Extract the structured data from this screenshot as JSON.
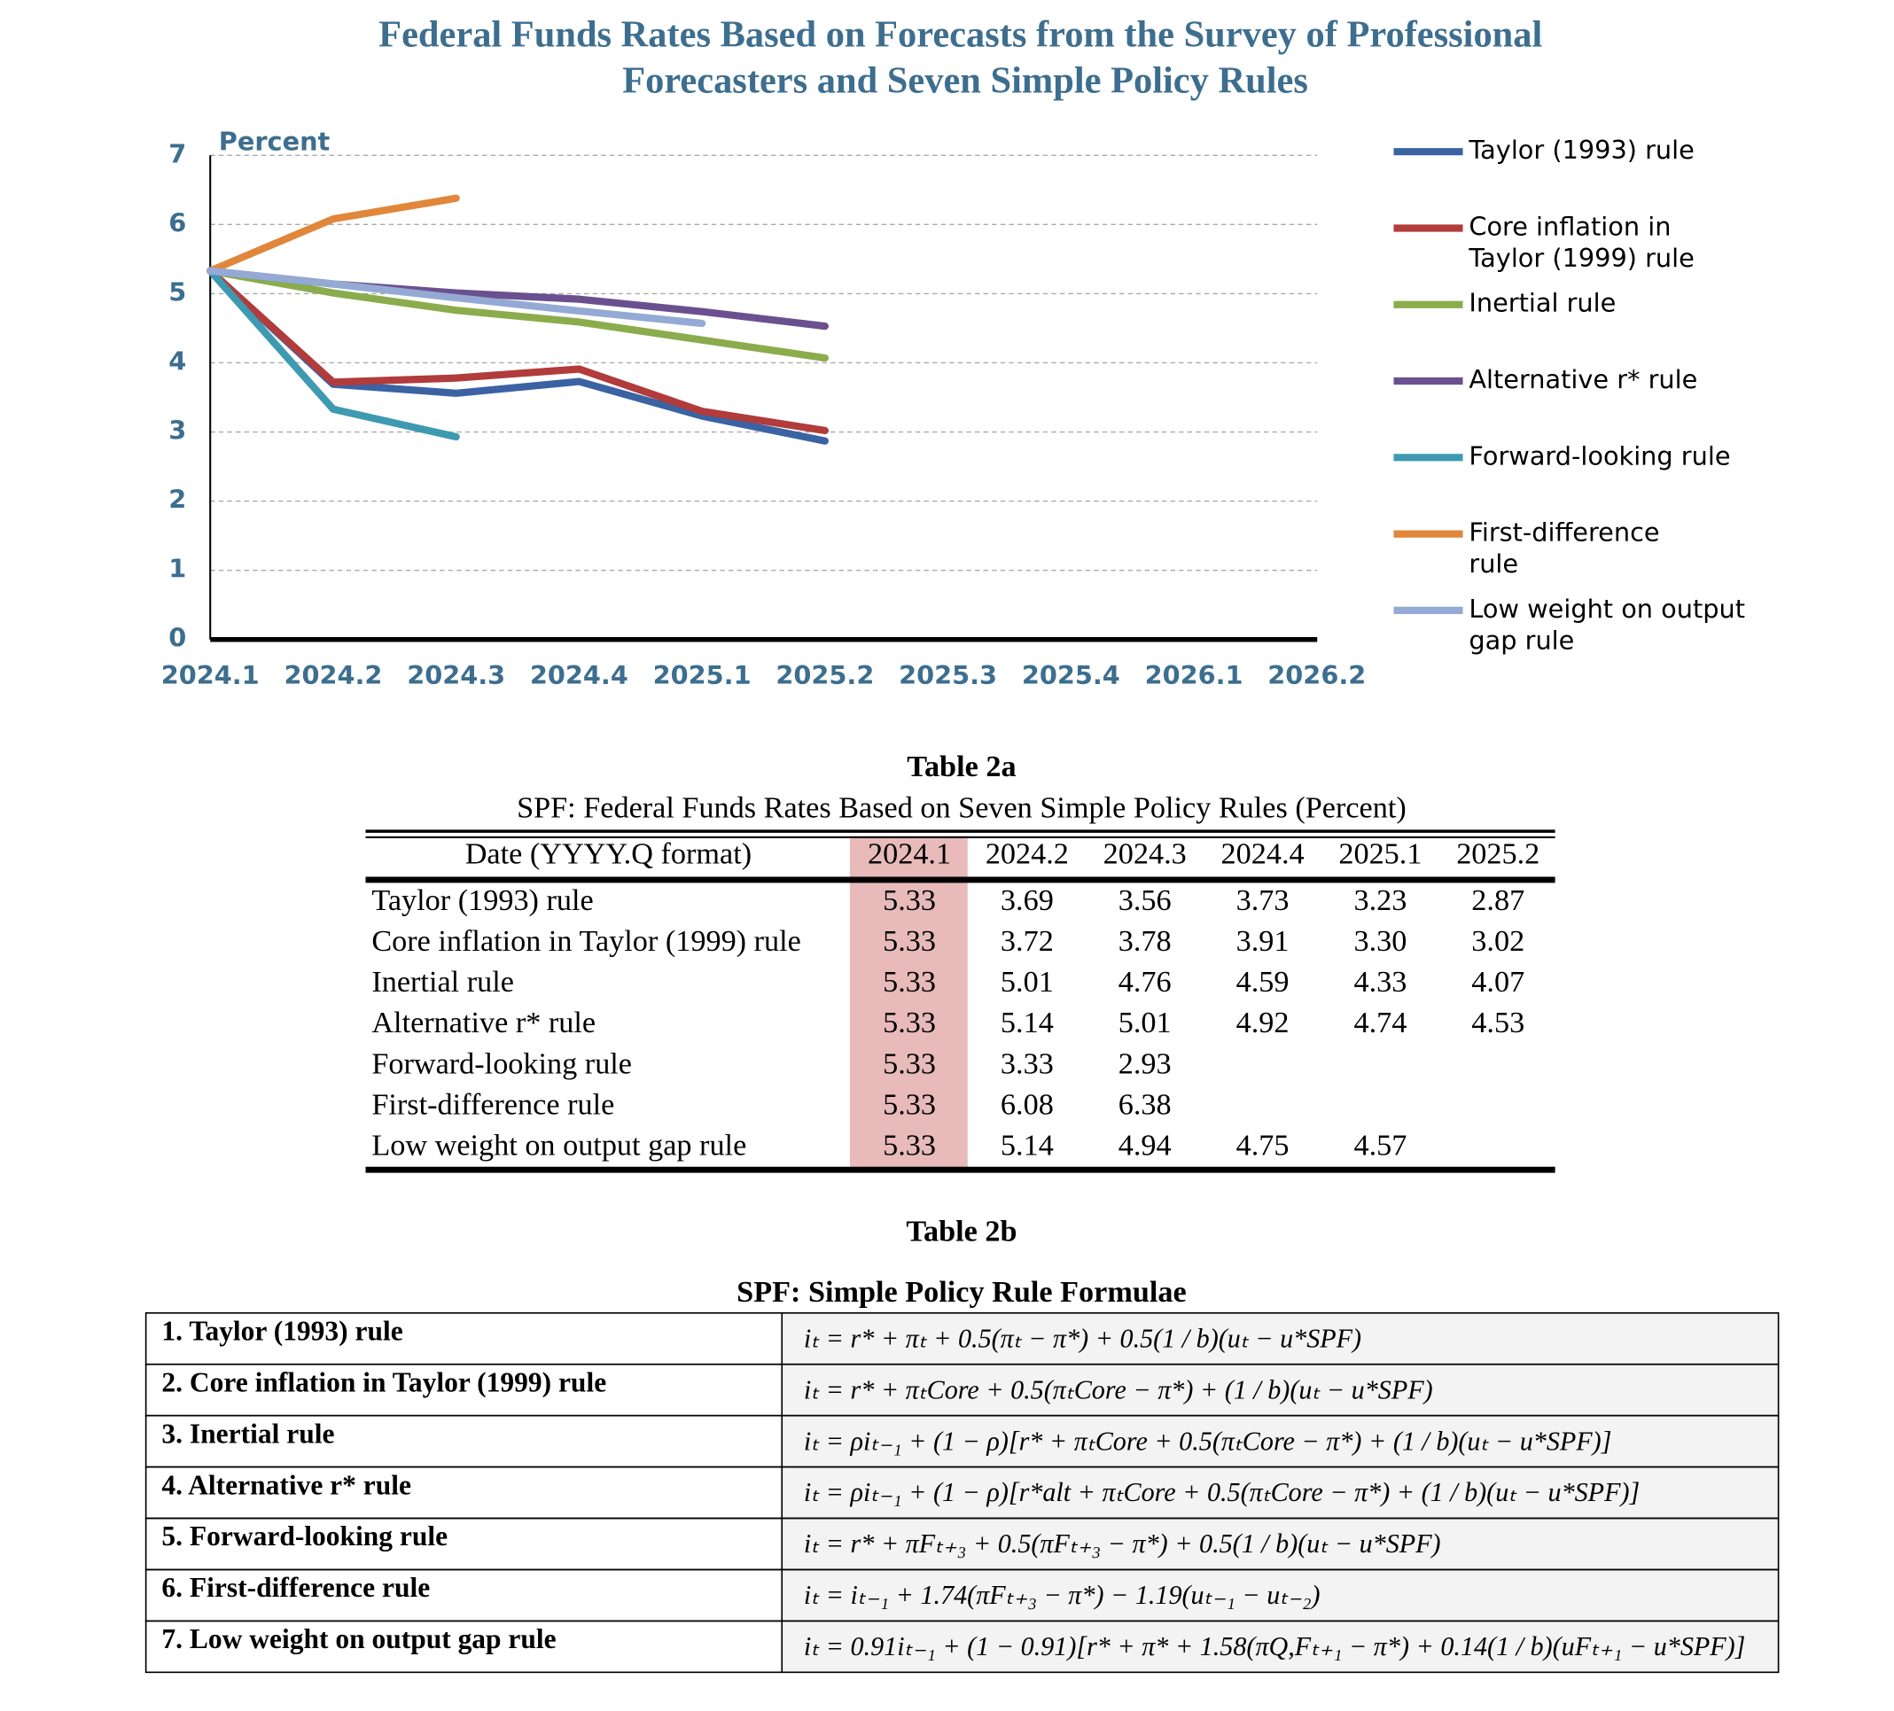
{
  "chart_data": {
    "type": "line",
    "title": "Federal Funds Rates Based on Forecasts from the Survey of Professional Forecasters and Seven Simple Policy Rules",
    "y_label": "Percent",
    "categories": [
      "2024.1",
      "2024.2",
      "2024.3",
      "2024.4",
      "2025.1",
      "2025.2",
      "2025.3",
      "2025.4",
      "2026.1",
      "2026.2"
    ],
    "ylim": [
      0,
      7
    ],
    "yticks": [
      0,
      1,
      2,
      3,
      4,
      5,
      6,
      7
    ],
    "grid": true,
    "legend": "right",
    "series": [
      {
        "name": "Taylor (1993) rule",
        "color": "#3b63a3",
        "values": [
          5.33,
          3.69,
          3.56,
          3.73,
          3.23,
          2.87,
          null,
          null,
          null,
          null
        ]
      },
      {
        "name": "Core inflation in Taylor (1999) rule",
        "color": "#b23b3b",
        "values": [
          5.33,
          3.72,
          3.78,
          3.91,
          3.3,
          3.02,
          null,
          null,
          null,
          null
        ]
      },
      {
        "name": "Inertial rule",
        "color": "#8bac4c",
        "values": [
          5.33,
          5.01,
          4.76,
          4.59,
          4.33,
          4.07,
          null,
          null,
          null,
          null
        ]
      },
      {
        "name": "Alternative r* rule",
        "color": "#6b5090",
        "values": [
          5.33,
          5.14,
          5.01,
          4.92,
          4.74,
          4.53,
          null,
          null,
          null,
          null
        ]
      },
      {
        "name": "Forward-looking rule",
        "color": "#3d9ab1",
        "values": [
          5.33,
          3.33,
          2.93,
          null,
          null,
          null,
          null,
          null,
          null,
          null
        ]
      },
      {
        "name": "First-difference rule",
        "color": "#e1873b",
        "values": [
          5.33,
          6.08,
          6.38,
          null,
          null,
          null,
          null,
          null,
          null,
          null
        ]
      },
      {
        "name": "Low weight on output gap rule",
        "color": "#94aad4",
        "values": [
          5.33,
          5.14,
          4.94,
          4.75,
          4.57,
          null,
          null,
          null,
          null,
          null
        ]
      }
    ]
  },
  "table_2a": {
    "title": "Table 2a",
    "subtitle": "SPF: Federal Funds Rates Based on Seven Simple Policy Rules (Percent)",
    "header": {
      "label": "Date (YYYY.Q format)",
      "columns": [
        "2024.1",
        "2024.2",
        "2024.3",
        "2024.4",
        "2025.1",
        "2025.2"
      ]
    },
    "rows": [
      {
        "label": "Taylor (1993) rule",
        "values": [
          "5.33",
          "3.69",
          "3.56",
          "3.73",
          "3.23",
          "2.87"
        ]
      },
      {
        "label": "Core inflation in Taylor (1999) rule",
        "values": [
          "5.33",
          "3.72",
          "3.78",
          "3.91",
          "3.30",
          "3.02"
        ]
      },
      {
        "label": "Inertial rule",
        "values": [
          "5.33",
          "5.01",
          "4.76",
          "4.59",
          "4.33",
          "4.07"
        ]
      },
      {
        "label": "Alternative r* rule",
        "values": [
          "5.33",
          "5.14",
          "5.01",
          "4.92",
          "4.74",
          "4.53"
        ]
      },
      {
        "label": "Forward-looking rule",
        "values": [
          "5.33",
          "3.33",
          "2.93"
        ]
      },
      {
        "label": "First-difference rule",
        "values": [
          "5.33",
          "6.08",
          "6.38"
        ]
      },
      {
        "label": "Low weight on output gap rule",
        "values": [
          "5.33",
          "5.14",
          "4.94",
          "4.75",
          "4.57"
        ]
      }
    ]
  },
  "table_2b": {
    "title": "Table 2b",
    "subtitle": "SPF: Simple Policy Rule Formulae",
    "rows": [
      {
        "label": "1. Taylor (1993) rule",
        "formula": "iₜ = r* + πₜ + 0.5(πₜ − π*) + 0.5(1 / b)(uₜ − u*SPF)"
      },
      {
        "label": "2. Core inflation in Taylor (1999) rule",
        "formula": "iₜ = r* + πₜCore + 0.5(πₜCore − π*) + (1 / b)(uₜ − u*SPF)"
      },
      {
        "label": "3. Inertial rule",
        "formula": "iₜ = ρiₜ₋₁ + (1 − ρ)[r* + πₜCore + 0.5(πₜCore − π*) + (1 / b)(uₜ − u*SPF)]"
      },
      {
        "label": "4. Alternative r* rule",
        "formula": "iₜ = ρiₜ₋₁ + (1 − ρ)[r*alt + πₜCore + 0.5(πₜCore − π*) + (1 / b)(uₜ − u*SPF)]"
      },
      {
        "label": "5. Forward-looking rule",
        "formula": "iₜ = r* + πFₜ₊₃ + 0.5(πFₜ₊₃ − π*) + 0.5(1 / b)(uₜ − u*SPF)"
      },
      {
        "label": "6. First-difference rule",
        "formula": "iₜ = iₜ₋₁ + 1.74(πFₜ₊₃ − π*) − 1.19(uₜ₋₁ − uₜ₋₂)"
      },
      {
        "label": "7. Low weight on output gap rule",
        "formula": "iₜ = 0.91iₜ₋₁ + (1 − 0.91)[r* + π* + 1.58(πQ,Fₜ₊₁ − π*) + 0.14(1 / b)(uFₜ₊₁ − u*SPF)]"
      }
    ]
  }
}
